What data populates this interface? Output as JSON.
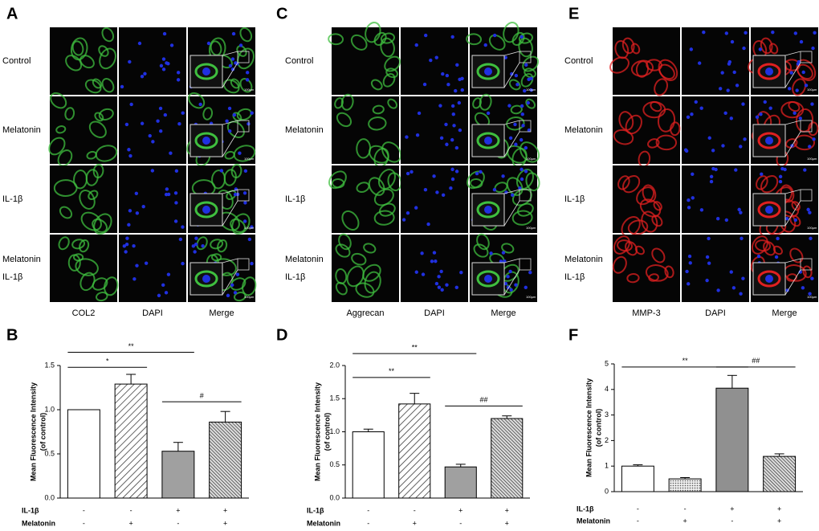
{
  "panels": [
    {
      "letter": "A",
      "stain_color": "#3fbf3f",
      "rows": [
        [
          "Control"
        ],
        [
          "Melatonin"
        ],
        [
          "IL-1β"
        ],
        [
          "Melatonin",
          "IL-1β"
        ]
      ],
      "columns": [
        "COL2",
        "DAPI",
        "Merge"
      ],
      "scale_bar": "100μm"
    },
    {
      "letter": "C",
      "stain_color": "#3fbf3f",
      "rows": [
        [
          "Control"
        ],
        [
          "Melatonin"
        ],
        [
          "IL-1β"
        ],
        [
          "Melatonin",
          "IL-1β"
        ]
      ],
      "columns": [
        "Aggrecan",
        "DAPI",
        "Merge"
      ],
      "scale_bar": "100μm"
    },
    {
      "letter": "E",
      "stain_color": "#e02020",
      "rows": [
        [
          "Control"
        ],
        [
          "Melatonin"
        ],
        [
          "IL-1β"
        ],
        [
          "Melatonin",
          "IL-1β"
        ]
      ],
      "columns": [
        "MMP-3",
        "DAPI",
        "Merge"
      ],
      "scale_bar": "100μm"
    }
  ],
  "chart_data": [
    {
      "type": "bar",
      "letter": "B",
      "ylabel": [
        "Mean Fluorescence Intensity",
        "(of control)"
      ],
      "values": [
        1.0,
        1.29,
        0.53,
        0.86
      ],
      "errors": [
        0.0,
        0.11,
        0.1,
        0.12
      ],
      "bar_styles": [
        "#ffffff",
        "hatch",
        "#a0a0a0",
        "hatch-dense"
      ],
      "ylim": [
        0,
        1.5
      ],
      "yticks": [
        {
          "value": 0,
          "label": "0.0"
        },
        {
          "value": 0.5,
          "label": "0.5"
        },
        {
          "value": 1,
          "label": "1.0"
        },
        {
          "value": 1.5,
          "label": "1.5"
        }
      ],
      "conditions": [
        {
          "name": "IL-1β",
          "signs": [
            "-",
            "-",
            "+",
            "+"
          ]
        },
        {
          "name": "Melatonin",
          "signs": [
            "-",
            "+",
            "-",
            "+"
          ]
        }
      ],
      "annotations": [
        {
          "text": "**",
          "from": 0,
          "to": 2,
          "y": 1.65
        },
        {
          "text": "*",
          "from": 0,
          "to": 1,
          "y": 1.48
        },
        {
          "text": "#",
          "from": 2,
          "to": 3,
          "y": 1.09
        }
      ]
    },
    {
      "type": "bar",
      "letter": "D",
      "ylabel": [
        "Mean Fluorescence Intensity",
        "(of control)"
      ],
      "values": [
        1.0,
        1.42,
        0.47,
        1.2
      ],
      "errors": [
        0.04,
        0.16,
        0.04,
        0.04
      ],
      "bar_styles": [
        "#ffffff",
        "hatch",
        "#a0a0a0",
        "hatch-dense"
      ],
      "ylim": [
        0,
        2
      ],
      "yticks": [
        {
          "value": 0,
          "label": "0.0"
        },
        {
          "value": 0.5,
          "label": "0.5"
        },
        {
          "value": 1,
          "label": "1.0"
        },
        {
          "value": 1.5,
          "label": "1.5"
        },
        {
          "value": 2,
          "label": "2.0"
        }
      ],
      "conditions": [
        {
          "name": "IL-1β",
          "signs": [
            "-",
            "-",
            "+",
            "+"
          ]
        },
        {
          "name": "Melatonin",
          "signs": [
            "-",
            "+",
            "-",
            "+"
          ]
        }
      ],
      "annotations": [
        {
          "text": "**",
          "from": 0,
          "to": 2,
          "y": 2.18
        },
        {
          "text": "**",
          "from": 0,
          "to": 1,
          "y": 1.82
        },
        {
          "text": "##",
          "from": 2,
          "to": 3,
          "y": 1.39
        }
      ]
    },
    {
      "type": "bar",
      "letter": "F",
      "ylabel": [
        "Mean Fluorescence Intensity",
        "(of control)"
      ],
      "values": [
        1.0,
        0.5,
        4.05,
        1.38
      ],
      "errors": [
        0.05,
        0.05,
        0.5,
        0.1
      ],
      "bar_styles": [
        "#ffffff",
        "dots",
        "#909090",
        "hatch-dense"
      ],
      "ylim": [
        0,
        5
      ],
      "yticks": [
        0,
        1,
        2,
        3,
        4,
        5
      ],
      "conditions": [
        {
          "name": "IL-1β",
          "signs": [
            "-",
            "-",
            "+",
            "+"
          ]
        },
        {
          "name": "Melatonin",
          "signs": [
            "-",
            "+",
            "-",
            "+"
          ]
        }
      ],
      "annotations": [
        {
          "text": "**",
          "from": 0,
          "to": 2,
          "y": 4.88
        },
        {
          "text": "##",
          "from": 2,
          "to": 3,
          "y": 4.88
        }
      ]
    }
  ]
}
